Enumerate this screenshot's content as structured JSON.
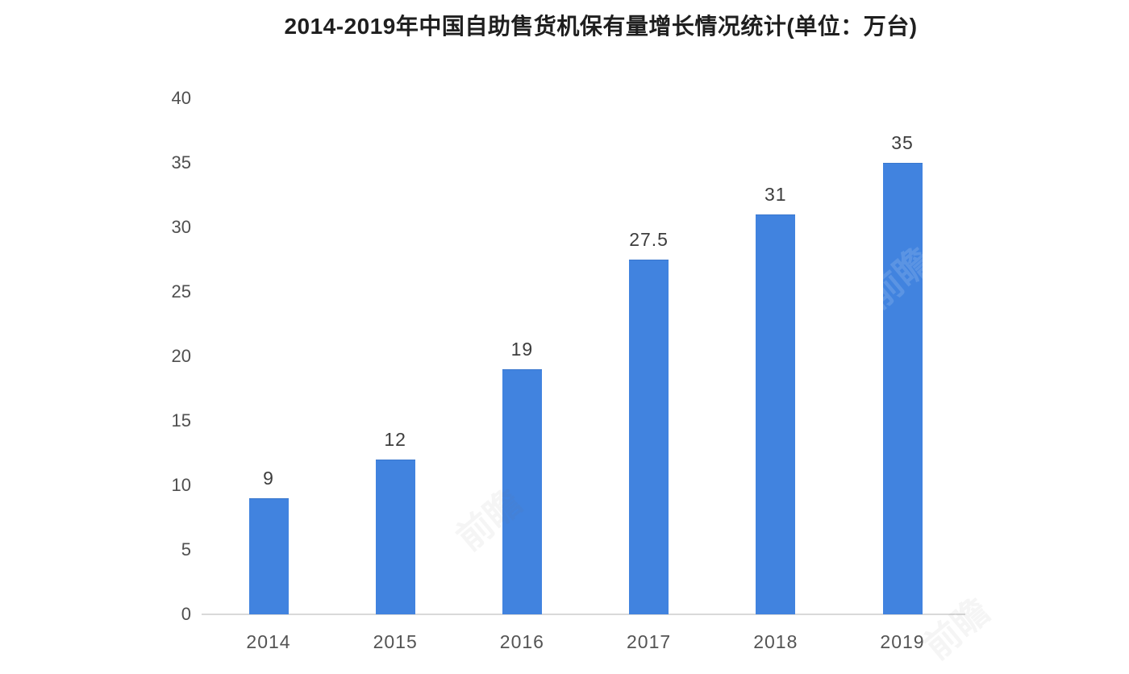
{
  "title": "2014-2019年中国自助售货机保有量增长情况统计(单位：万台)",
  "watermark_text": "前瞻",
  "chart_data": {
    "type": "bar",
    "title": "2014-2019年中国自助售货机保有量增长情况统计(单位：万台)",
    "categories": [
      "2014",
      "2015",
      "2016",
      "2017",
      "2018",
      "2019"
    ],
    "values": [
      9,
      12,
      19,
      27.5,
      31,
      35
    ],
    "value_labels": [
      "9",
      "12",
      "19",
      "27.5",
      "31",
      "35"
    ],
    "xlabel": "",
    "ylabel": "",
    "ylim": [
      0,
      40
    ],
    "yticks": [
      0,
      5,
      10,
      15,
      20,
      25,
      30,
      35,
      40
    ],
    "grid": false,
    "legend": "none",
    "bar_color": "#4183df",
    "baseline_color": "#d9d9d9",
    "title_color": "#1f1f1f",
    "tick_label_color": "#4f4f4f",
    "value_label_color": "#3d3d3d"
  }
}
